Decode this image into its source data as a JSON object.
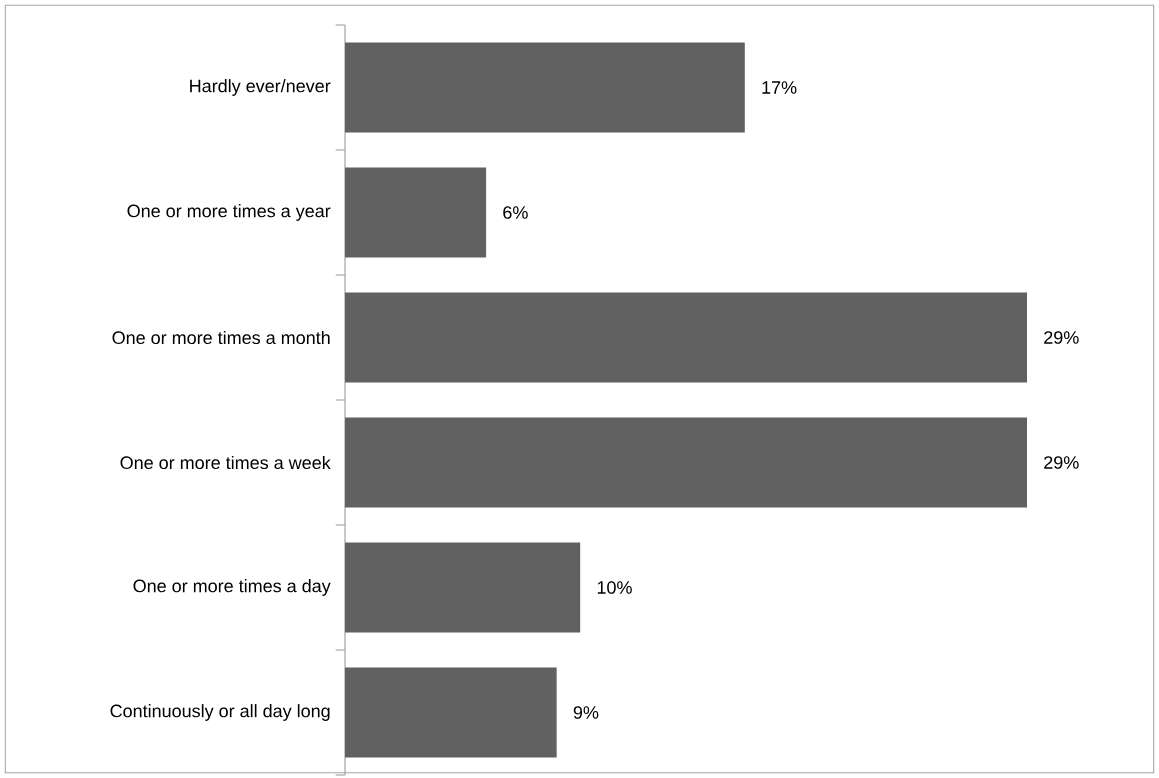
{
  "chart_data": {
    "type": "bar",
    "orientation": "horizontal",
    "categories": [
      "Hardly ever/never",
      "One or more times a year",
      "One or more times a month",
      "One or more times a week",
      "One or more times a day",
      "Continuously or all day long"
    ],
    "values": [
      17,
      6,
      29,
      29,
      10,
      9
    ],
    "value_labels": [
      "17%",
      "6%",
      "29%",
      "29%",
      "10%",
      "9%"
    ],
    "color": "#616161"
  }
}
